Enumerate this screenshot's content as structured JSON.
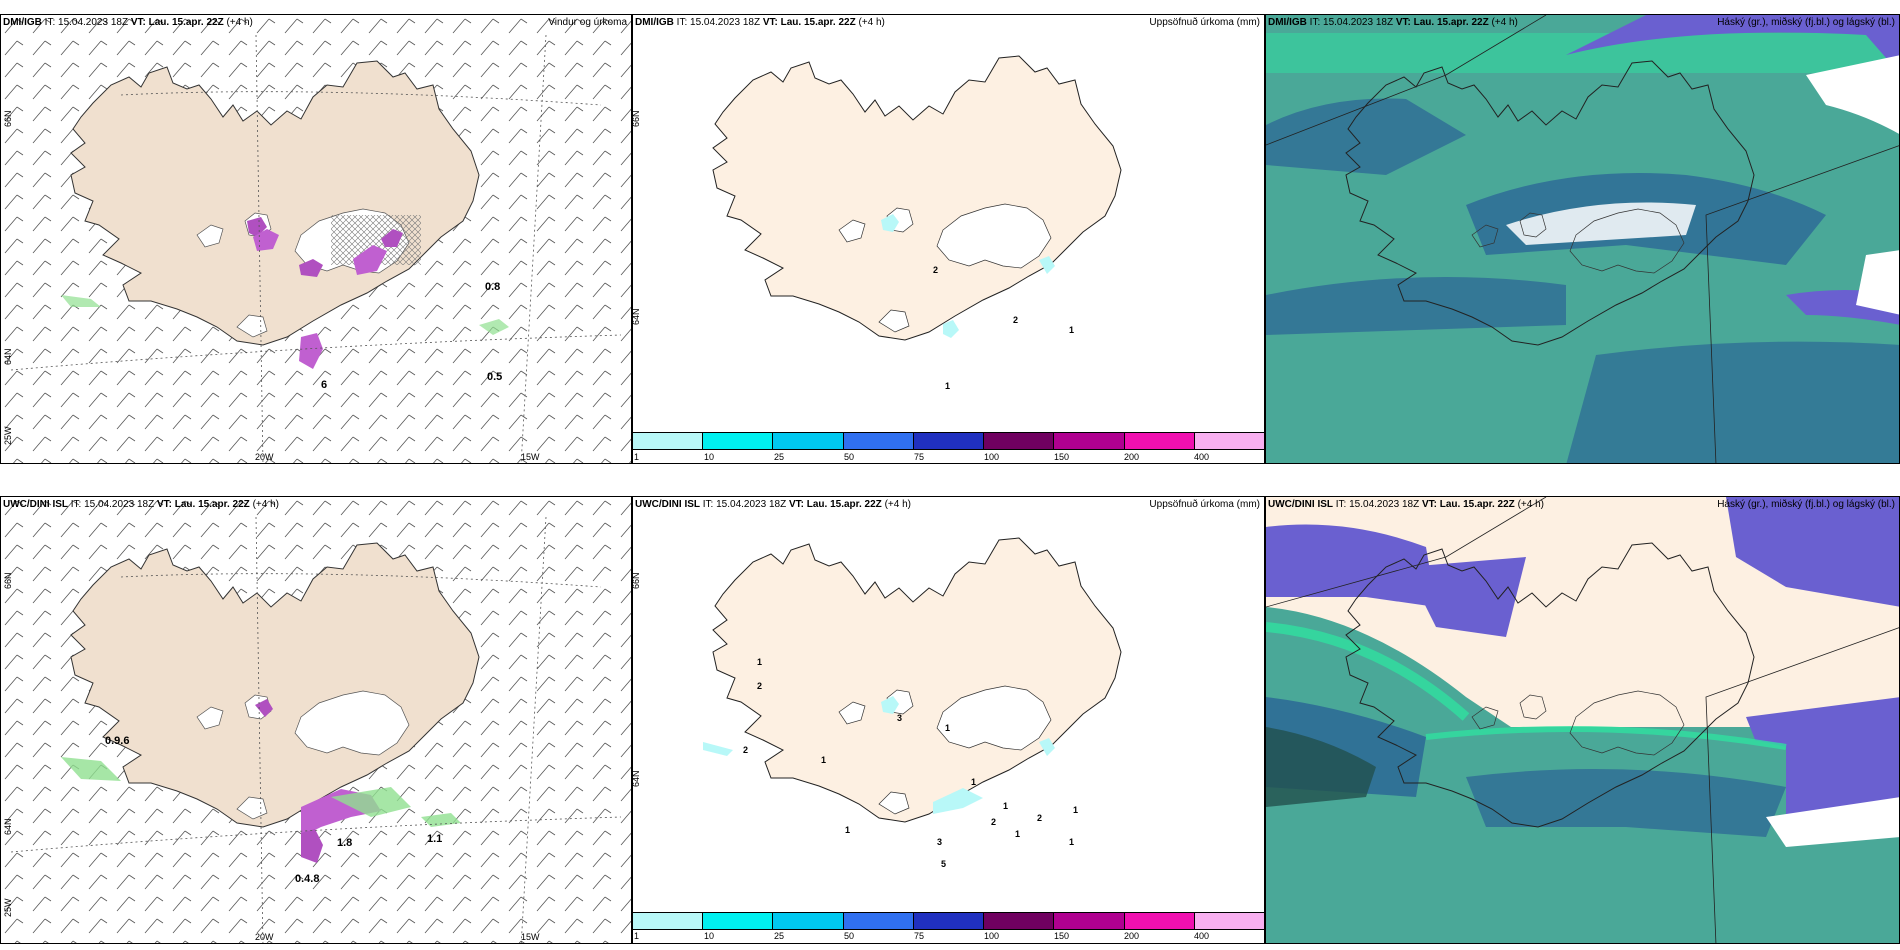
{
  "rows": [
    {
      "model": "DMI/IGB",
      "it_label": "IT: 15.04.2023 18Z",
      "vt_label": "VT: Lau. 15.apr. 22Z",
      "lead": "(+4 h)",
      "wind_values": [
        "0.8",
        "0.5",
        "6"
      ],
      "precip_values": [
        "2",
        "2",
        "1",
        "1"
      ]
    },
    {
      "model": "UWC/DINI ISL",
      "it_label": "IT: 15.04.2023 18Z",
      "vt_label": "VT: Lau. 15.apr. 22Z",
      "lead": "(+4 h)",
      "wind_values": [
        "0.9.6",
        "1.8",
        "1.1",
        "0.4.8"
      ],
      "precip_values": [
        "1",
        "2",
        "2",
        "1",
        "3",
        "1",
        "1",
        "1",
        "2",
        "1",
        "1",
        "2",
        "1",
        "3",
        "1",
        "5"
      ]
    }
  ],
  "panel_titles": {
    "wind": "Vindur og úrkoma",
    "precip": "Uppsöfnuð úrkoma (mm)",
    "cloud": "Háský (gr.), miðský (fj.bl.) og lágský (bl.)"
  },
  "axes": {
    "lat66": "66N",
    "lat64": "64N",
    "lon25": "25W",
    "lon20": "20W",
    "lon15": "15W"
  },
  "colorbar": {
    "ticks": [
      "1",
      "10",
      "25",
      "50",
      "75",
      "100",
      "150",
      "200",
      "400"
    ],
    "colors": [
      "#b8f8f8",
      "#00f0f0",
      "#00c8f0",
      "#3070f0",
      "#2030c0",
      "#700060",
      "#b00090",
      "#f010b0",
      "#f8b0f0"
    ]
  },
  "colors": {
    "land_wind": "#f0e0cf",
    "land_precip": "#fdf0e2",
    "cloud_low": "#4aa898",
    "cloud_mid": "#2e6c96",
    "cloud_high": "#6a60d0",
    "cloud_green": "#30e0a0"
  }
}
